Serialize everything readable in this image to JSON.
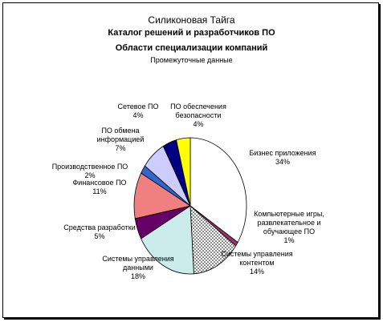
{
  "chart_data": {
    "type": "pie",
    "title": "Силиконовая Тайга",
    "subtitles": [
      "Каталог решений и разработчиков ПО",
      "Области специализации компаний"
    ],
    "note": "Промежуточные данные",
    "categories": [
      "Бизнес приложения",
      "Компьютерные игры, развлекательное и обучающее ПО",
      "Системы управления контентом",
      "Системы управления данными",
      "Средства разработки",
      "Финансовое ПО",
      "Производственное ПО",
      "ПО обмена информацией",
      "Сетевое ПО",
      "ПО обеспечения безопасности"
    ],
    "values": [
      34,
      1,
      14,
      18,
      5,
      11,
      2,
      7,
      4,
      4
    ],
    "value_labels": [
      "34%",
      "1%",
      "14%",
      "18%",
      "5%",
      "11%",
      "2%",
      "7%",
      "4%",
      "4%"
    ],
    "colors": [
      "#ffffff",
      "#993366",
      "#ffffff",
      "#ccecec",
      "#660066",
      "#f08080",
      "#3366cc",
      "#ccccff",
      "#000080",
      "#ffff00"
    ],
    "patterns": [
      null,
      null,
      "dots",
      null,
      null,
      null,
      null,
      null,
      null,
      null
    ]
  }
}
